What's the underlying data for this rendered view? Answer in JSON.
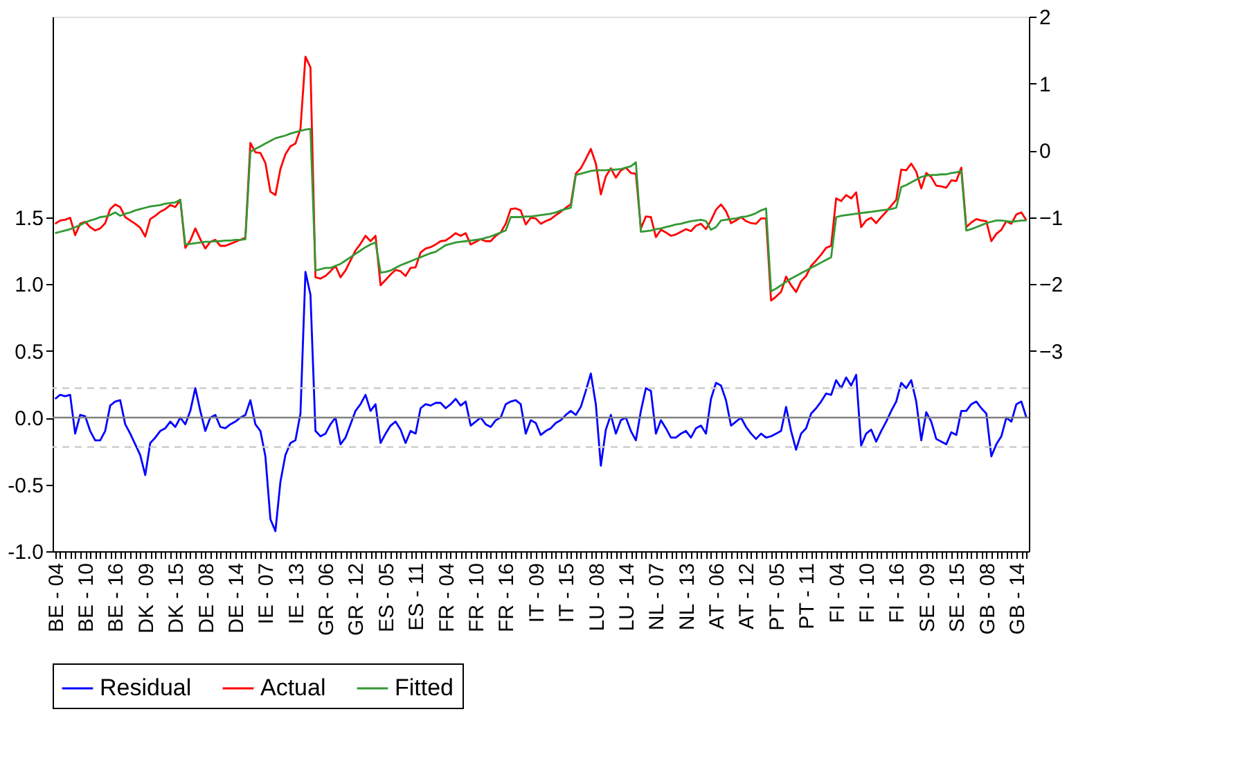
{
  "chart_data": {
    "type": "line",
    "categories": [
      "BE - 04",
      null,
      null,
      null,
      null,
      null,
      "BE - 10",
      null,
      null,
      null,
      null,
      null,
      "BE - 16",
      null,
      null,
      null,
      null,
      null,
      "DK - 09",
      null,
      null,
      null,
      null,
      null,
      "DK - 15",
      null,
      null,
      null,
      null,
      null,
      "DE - 08",
      null,
      null,
      null,
      null,
      null,
      "DE - 14",
      null,
      null,
      null,
      null,
      null,
      "IE - 07",
      null,
      null,
      null,
      null,
      null,
      "IE - 13",
      null,
      null,
      null,
      null,
      null,
      "GR - 06",
      null,
      null,
      null,
      null,
      null,
      "GR - 12",
      null,
      null,
      null,
      null,
      null,
      "ES - 05",
      null,
      null,
      null,
      null,
      null,
      "ES - 11",
      null,
      null,
      null,
      null,
      null,
      "FR - 04",
      null,
      null,
      null,
      null,
      null,
      "FR - 10",
      null,
      null,
      null,
      null,
      null,
      "FR - 16",
      null,
      null,
      null,
      null,
      null,
      "IT - 09",
      null,
      null,
      null,
      null,
      null,
      "IT - 15",
      null,
      null,
      null,
      null,
      null,
      "LU - 08",
      null,
      null,
      null,
      null,
      null,
      "LU - 14",
      null,
      null,
      null,
      null,
      null,
      "NL - 07",
      null,
      null,
      null,
      null,
      null,
      "NL - 13",
      null,
      null,
      null,
      null,
      null,
      "AT - 06",
      null,
      null,
      null,
      null,
      null,
      "AT - 12",
      null,
      null,
      null,
      null,
      null,
      "PT - 05",
      null,
      null,
      null,
      null,
      null,
      "PT - 11",
      null,
      null,
      null,
      null,
      null,
      "FI - 04",
      null,
      null,
      null,
      null,
      null,
      "FI - 10",
      null,
      null,
      null,
      null,
      null,
      "FI - 16",
      null,
      null,
      null,
      null,
      null,
      "SE - 09",
      null,
      null,
      null,
      null,
      null,
      "SE - 15",
      null,
      null,
      null,
      null,
      null,
      "GB - 08",
      null,
      null,
      null,
      null,
      null,
      "GB - 14",
      null,
      null
    ],
    "series": [
      {
        "name": "Residual",
        "color": "#0000ff",
        "axis": "y",
        "values": [
          0.14,
          0.17,
          0.16,
          0.17,
          -0.12,
          0.02,
          0.01,
          -0.1,
          -0.17,
          -0.17,
          -0.1,
          0.09,
          0.12,
          0.13,
          -0.05,
          -0.12,
          -0.2,
          -0.28,
          -0.43,
          -0.19,
          -0.15,
          -0.1,
          -0.08,
          -0.03,
          -0.07,
          0.0,
          -0.05,
          0.05,
          0.22,
          0.05,
          -0.1,
          0.0,
          0.02,
          -0.07,
          -0.08,
          -0.05,
          -0.03,
          0.0,
          0.02,
          0.13,
          -0.05,
          -0.1,
          -0.29,
          -0.76,
          -0.85,
          -0.48,
          -0.28,
          -0.19,
          -0.17,
          0.03,
          1.09,
          0.92,
          -0.1,
          -0.14,
          -0.12,
          -0.05,
          0.0,
          -0.2,
          -0.15,
          -0.05,
          0.05,
          0.1,
          0.17,
          0.05,
          0.1,
          -0.19,
          -0.12,
          -0.06,
          -0.03,
          -0.09,
          -0.19,
          -0.1,
          -0.12,
          0.07,
          0.1,
          0.09,
          0.11,
          0.11,
          0.07,
          0.1,
          0.14,
          0.09,
          0.12,
          -0.06,
          -0.03,
          0.0,
          -0.05,
          -0.07,
          -0.02,
          0.0,
          0.1,
          0.12,
          0.13,
          0.1,
          -0.12,
          -0.02,
          -0.04,
          -0.13,
          -0.1,
          -0.08,
          -0.04,
          -0.02,
          0.02,
          0.05,
          0.02,
          0.08,
          0.2,
          0.33,
          0.1,
          -0.36,
          -0.09,
          0.02,
          -0.12,
          -0.02,
          0.0,
          -0.1,
          -0.17,
          0.05,
          0.22,
          0.2,
          -0.12,
          -0.02,
          -0.08,
          -0.15,
          -0.15,
          -0.12,
          -0.1,
          -0.15,
          -0.08,
          -0.06,
          -0.12,
          0.14,
          0.26,
          0.24,
          0.13,
          -0.06,
          -0.03,
          0.0,
          -0.07,
          -0.12,
          -0.16,
          -0.12,
          -0.15,
          -0.14,
          -0.12,
          -0.1,
          0.08,
          -0.1,
          -0.24,
          -0.12,
          -0.08,
          0.03,
          0.07,
          0.12,
          0.18,
          0.17,
          0.28,
          0.22,
          0.3,
          0.24,
          0.32,
          -0.21,
          -0.12,
          -0.09,
          -0.18,
          -0.1,
          -0.03,
          0.05,
          0.12,
          0.26,
          0.22,
          0.28,
          0.12,
          -0.17,
          0.04,
          -0.03,
          -0.16,
          -0.18,
          -0.2,
          -0.11,
          -0.13,
          0.05,
          0.05,
          0.1,
          0.12,
          0.07,
          0.03,
          -0.29,
          -0.2,
          -0.14,
          0.0,
          -0.03,
          0.1,
          0.12,
          0.0
        ]
      },
      {
        "name": "Actual",
        "color": "#ff0000",
        "axis": "y2",
        "values": [
          -1.1,
          -1.05,
          -1.04,
          -1.01,
          -1.27,
          -1.1,
          -1.07,
          -1.15,
          -1.2,
          -1.17,
          -1.09,
          -0.88,
          -0.81,
          -0.85,
          -1.0,
          -1.05,
          -1.1,
          -1.16,
          -1.29,
          -1.03,
          -0.98,
          -0.92,
          -0.88,
          -0.82,
          -0.85,
          -0.74,
          -1.46,
          -1.35,
          -1.17,
          -1.33,
          -1.47,
          -1.37,
          -1.34,
          -1.43,
          -1.43,
          -1.4,
          -1.37,
          -1.34,
          -1.31,
          0.11,
          -0.03,
          -0.04,
          -0.19,
          -0.62,
          -0.67,
          -0.28,
          -0.06,
          0.06,
          0.1,
          0.32,
          1.4,
          1.24,
          -1.9,
          -1.92,
          -1.88,
          -1.81,
          -1.73,
          -1.9,
          -1.8,
          -1.65,
          -1.5,
          -1.4,
          -1.28,
          -1.36,
          -1.28,
          -2.02,
          -1.94,
          -1.86,
          -1.79,
          -1.81,
          -1.88,
          -1.76,
          -1.75,
          -1.53,
          -1.47,
          -1.45,
          -1.41,
          -1.36,
          -1.35,
          -1.3,
          -1.24,
          -1.28,
          -1.24,
          -1.41,
          -1.37,
          -1.33,
          -1.36,
          -1.36,
          -1.28,
          -1.23,
          -1.1,
          -0.88,
          -0.87,
          -0.9,
          -1.11,
          -1.01,
          -1.02,
          -1.1,
          -1.06,
          -1.03,
          -0.97,
          -0.92,
          -0.86,
          -0.81,
          -0.35,
          -0.27,
          -0.13,
          0.02,
          -0.2,
          -0.66,
          -0.39,
          -0.27,
          -0.41,
          -0.3,
          -0.26,
          -0.34,
          -0.35,
          -1.17,
          -0.99,
          -1.0,
          -1.3,
          -1.19,
          -1.23,
          -1.28,
          -1.26,
          -1.22,
          -1.18,
          -1.21,
          -1.13,
          -1.1,
          -1.18,
          -1.05,
          -0.89,
          -0.81,
          -0.91,
          -1.09,
          -1.05,
          -1.0,
          -1.06,
          -1.09,
          -1.1,
          -1.02,
          -1.02,
          -2.25,
          -2.19,
          -2.12,
          -1.89,
          -2.02,
          -2.12,
          -1.96,
          -1.88,
          -1.73,
          -1.65,
          -1.56,
          -1.46,
          -1.43,
          -0.72,
          -0.76,
          -0.67,
          -0.72,
          -0.63,
          -1.15,
          -1.05,
          -1.01,
          -1.09,
          -1.0,
          -0.92,
          -0.83,
          -0.74,
          -0.29,
          -0.3,
          -0.2,
          -0.32,
          -0.57,
          -0.34,
          -0.4,
          -0.53,
          -0.54,
          -0.56,
          -0.45,
          -0.46,
          -0.26,
          -1.15,
          -1.08,
          -1.03,
          -1.05,
          -1.06,
          -1.36,
          -1.25,
          -1.19,
          -1.06,
          -1.1,
          -0.96,
          -0.93,
          -1.05
        ]
      },
      {
        "name": "Fitted",
        "color": "#339933",
        "axis": "y2",
        "values": [
          -1.24,
          -1.22,
          -1.2,
          -1.18,
          -1.15,
          -1.12,
          -1.08,
          -1.05,
          -1.03,
          -1.0,
          -0.99,
          -0.97,
          -0.93,
          -0.98,
          -0.95,
          -0.93,
          -0.9,
          -0.88,
          -0.86,
          -0.84,
          -0.83,
          -0.82,
          -0.8,
          -0.79,
          -0.78,
          -0.74,
          -1.41,
          -1.4,
          -1.39,
          -1.38,
          -1.37,
          -1.37,
          -1.36,
          -1.36,
          -1.35,
          -1.35,
          -1.34,
          -1.34,
          -1.33,
          -0.02,
          0.02,
          0.06,
          0.1,
          0.14,
          0.18,
          0.2,
          0.22,
          0.25,
          0.27,
          0.29,
          0.31,
          0.32,
          -1.8,
          -1.78,
          -1.76,
          -1.76,
          -1.73,
          -1.7,
          -1.65,
          -1.6,
          -1.55,
          -1.5,
          -1.45,
          -1.41,
          -1.38,
          -1.83,
          -1.82,
          -1.8,
          -1.76,
          -1.72,
          -1.69,
          -1.66,
          -1.63,
          -1.6,
          -1.57,
          -1.54,
          -1.52,
          -1.47,
          -1.42,
          -1.4,
          -1.38,
          -1.37,
          -1.36,
          -1.35,
          -1.34,
          -1.33,
          -1.31,
          -1.29,
          -1.26,
          -1.23,
          -1.2,
          -1.0,
          -1.0,
          -1.0,
          -0.99,
          -0.99,
          -0.98,
          -0.97,
          -0.96,
          -0.95,
          -0.93,
          -0.9,
          -0.88,
          -0.86,
          -0.37,
          -0.35,
          -0.33,
          -0.31,
          -0.3,
          -0.3,
          -0.3,
          -0.29,
          -0.29,
          -0.28,
          -0.26,
          -0.24,
          -0.18,
          -1.22,
          -1.21,
          -1.2,
          -1.18,
          -1.17,
          -1.15,
          -1.13,
          -1.11,
          -1.1,
          -1.08,
          -1.06,
          -1.05,
          -1.04,
          -1.06,
          -1.19,
          -1.15,
          -1.05,
          -1.04,
          -1.03,
          -1.02,
          -1.0,
          -0.99,
          -0.97,
          -0.94,
          -0.9,
          -0.87,
          -2.11,
          -2.07,
          -2.02,
          -1.97,
          -1.92,
          -1.88,
          -1.84,
          -1.8,
          -1.76,
          -1.72,
          -1.68,
          -1.64,
          -1.6,
          -1.0,
          -0.98,
          -0.97,
          -0.96,
          -0.95,
          -0.94,
          -0.93,
          -0.92,
          -0.91,
          -0.9,
          -0.89,
          -0.88,
          -0.86,
          -0.55,
          -0.52,
          -0.48,
          -0.44,
          -0.4,
          -0.38,
          -0.37,
          -0.37,
          -0.36,
          -0.36,
          -0.34,
          -0.33,
          -0.31,
          -1.2,
          -1.18,
          -1.15,
          -1.12,
          -1.09,
          -1.07,
          -1.05,
          -1.05,
          -1.06,
          -1.07,
          -1.06,
          -1.05,
          -1.05
        ]
      }
    ],
    "ylim": [
      -1,
      3
    ],
    "yticks": [
      {
        "value": -1,
        "label": "-1.0"
      },
      {
        "value": -0.5,
        "label": "-0.5"
      },
      {
        "value": 0,
        "label": "0.0"
      },
      {
        "value": 0.5,
        "label": "0.5"
      },
      {
        "value": 1,
        "label": "1.0"
      },
      {
        "value": 1.5,
        "label": "1.5"
      }
    ],
    "y2lim": [
      -6,
      2
    ],
    "y2ticks": [
      -3,
      -2,
      -1,
      0,
      1,
      2
    ],
    "ref_lines": [
      {
        "axis": "y",
        "value": 0,
        "color": "#808080",
        "line_style": "solid"
      },
      {
        "axis": "y",
        "value": 0.22,
        "color": "#cccccc",
        "line_style": "dashed"
      },
      {
        "axis": "y",
        "value": -0.22,
        "color": "#cccccc",
        "line_style": "dashed"
      }
    ],
    "legend": "bottom",
    "line_style": "solid"
  }
}
